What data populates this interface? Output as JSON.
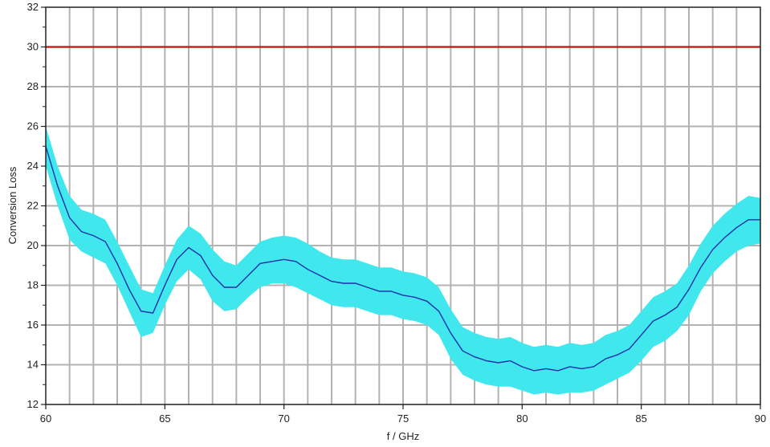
{
  "chart_data": {
    "type": "area",
    "title": "",
    "xlabel": "f / GHz",
    "ylabel": "Conversion Loss",
    "xlim": [
      60,
      90
    ],
    "ylim": [
      12,
      32
    ],
    "x_ticks": [
      60,
      65,
      70,
      75,
      80,
      85,
      90
    ],
    "y_ticks": [
      12,
      14,
      16,
      18,
      20,
      22,
      24,
      26,
      28,
      30,
      32
    ],
    "grid": true,
    "vertical_grid_step": 1,
    "limit_line": {
      "y": 30,
      "color": "#cc2222"
    },
    "series": [
      {
        "style": "band",
        "color": "#40e8ee",
        "x": [
          60,
          60.5,
          61,
          61.5,
          62,
          62.5,
          63,
          63.5,
          64,
          64.5,
          65,
          65.5,
          66,
          66.5,
          67,
          67.5,
          68,
          68.5,
          69,
          69.5,
          70,
          70.5,
          71,
          71.5,
          72,
          72.5,
          73,
          73.5,
          74,
          74.5,
          75,
          75.5,
          76,
          76.5,
          77,
          77.5,
          78,
          78.5,
          79,
          79.5,
          80,
          80.5,
          81,
          81.5,
          82,
          82.5,
          83,
          83.5,
          84,
          84.5,
          85,
          85.5,
          86,
          86.5,
          87,
          87.5,
          88,
          88.5,
          89,
          89.5,
          90
        ],
        "upper": [
          26.0,
          24.0,
          22.5,
          21.8,
          21.6,
          21.3,
          20.2,
          19.0,
          17.8,
          17.6,
          19.0,
          20.3,
          21.0,
          20.6,
          19.8,
          19.2,
          19.0,
          19.6,
          20.2,
          20.4,
          20.5,
          20.4,
          20.1,
          19.7,
          19.4,
          19.3,
          19.3,
          19.1,
          18.9,
          18.9,
          18.7,
          18.6,
          18.4,
          17.9,
          16.8,
          15.9,
          15.6,
          15.4,
          15.3,
          15.4,
          15.1,
          14.9,
          15.0,
          14.9,
          15.1,
          15.0,
          15.1,
          15.5,
          15.7,
          16.0,
          16.7,
          17.4,
          17.7,
          18.1,
          19.0,
          20.1,
          21.0,
          21.6,
          22.1,
          22.5,
          22.4
        ],
        "lower": [
          24.0,
          22.0,
          20.3,
          19.7,
          19.4,
          19.1,
          18.0,
          16.7,
          15.4,
          15.6,
          17.0,
          18.2,
          18.8,
          18.3,
          17.2,
          16.7,
          16.8,
          17.4,
          17.9,
          18.1,
          18.1,
          17.9,
          17.6,
          17.3,
          17.0,
          16.9,
          16.9,
          16.7,
          16.5,
          16.5,
          16.3,
          16.2,
          16.0,
          15.5,
          14.3,
          13.5,
          13.2,
          13.0,
          12.9,
          12.9,
          12.7,
          12.5,
          12.6,
          12.5,
          12.6,
          12.6,
          12.7,
          13.0,
          13.3,
          13.6,
          14.2,
          14.9,
          15.2,
          15.7,
          16.5,
          17.7,
          18.6,
          19.2,
          19.7,
          20.0,
          20.1
        ]
      },
      {
        "style": "line",
        "color": "#1a2fa8",
        "x": [
          60,
          60.5,
          61,
          61.5,
          62,
          62.5,
          63,
          63.5,
          64,
          64.5,
          65,
          65.5,
          66,
          66.5,
          67,
          67.5,
          68,
          68.5,
          69,
          69.5,
          70,
          70.5,
          71,
          71.5,
          72,
          72.5,
          73,
          73.5,
          74,
          74.5,
          75,
          75.5,
          76,
          76.5,
          77,
          77.5,
          78,
          78.5,
          79,
          79.5,
          80,
          80.5,
          81,
          81.5,
          82,
          82.5,
          83,
          83.5,
          84,
          84.5,
          85,
          85.5,
          86,
          86.5,
          87,
          87.5,
          88,
          88.5,
          89,
          89.5,
          90
        ],
        "values": [
          25.0,
          23.0,
          21.4,
          20.7,
          20.5,
          20.2,
          19.1,
          17.8,
          16.7,
          16.6,
          18.0,
          19.3,
          19.9,
          19.5,
          18.5,
          17.9,
          17.9,
          18.5,
          19.1,
          19.2,
          19.3,
          19.2,
          18.8,
          18.5,
          18.2,
          18.1,
          18.1,
          17.9,
          17.7,
          17.7,
          17.5,
          17.4,
          17.2,
          16.7,
          15.6,
          14.7,
          14.4,
          14.2,
          14.1,
          14.2,
          13.9,
          13.7,
          13.8,
          13.7,
          13.9,
          13.8,
          13.9,
          14.3,
          14.5,
          14.8,
          15.5,
          16.2,
          16.5,
          16.9,
          17.8,
          18.9,
          19.8,
          20.4,
          20.9,
          21.3,
          21.3
        ]
      }
    ]
  }
}
